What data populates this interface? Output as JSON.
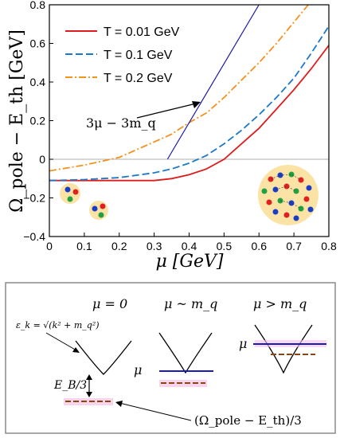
{
  "chart_data": {
    "type": "line",
    "xlabel": "μ [GeV]",
    "ylabel": "Ω_pole − E_th [GeV]",
    "xlim": [
      0,
      0.8
    ],
    "ylim": [
      -0.4,
      0.8
    ],
    "x_ticks": [
      "0",
      "0.1",
      "0.2",
      "0.3",
      "0.4",
      "0.5",
      "0.6",
      "0.7",
      "0.8"
    ],
    "y_ticks": [
      "−0.4",
      "−0.2",
      "0",
      "0.2",
      "0.4",
      "0.6",
      "0.8"
    ],
    "legend": {
      "placement": "top-left",
      "entries": [
        {
          "label": "T = 0.01 GeV",
          "color": "#e01b1b",
          "style": "solid"
        },
        {
          "label": "T = 0.1 GeV",
          "color": "#1e78c8",
          "style": "dashed"
        },
        {
          "label": "T = 0.2 GeV",
          "color": "#f5921e",
          "style": "dashdot"
        }
      ]
    },
    "series": [
      {
        "name": "T = 0.01 GeV",
        "color": "#e01b1b",
        "style": "solid",
        "x": [
          0,
          0.1,
          0.2,
          0.3,
          0.35,
          0.4,
          0.45,
          0.5,
          0.55,
          0.6,
          0.65,
          0.7,
          0.75,
          0.8
        ],
        "y": [
          -0.11,
          -0.11,
          -0.11,
          -0.11,
          -0.1,
          -0.08,
          -0.05,
          0.0,
          0.08,
          0.16,
          0.26,
          0.36,
          0.47,
          0.59
        ]
      },
      {
        "name": "T = 0.1 GeV",
        "color": "#1e78c8",
        "style": "dashed",
        "x": [
          0,
          0.1,
          0.2,
          0.3,
          0.35,
          0.4,
          0.45,
          0.5,
          0.55,
          0.6,
          0.65,
          0.7,
          0.75,
          0.8
        ],
        "y": [
          -0.11,
          -0.105,
          -0.095,
          -0.07,
          -0.05,
          -0.02,
          0.02,
          0.08,
          0.15,
          0.23,
          0.32,
          0.42,
          0.55,
          0.69
        ]
      },
      {
        "name": "T = 0.2 GeV",
        "color": "#f5921e",
        "style": "dashdot",
        "x": [
          0,
          0.1,
          0.2,
          0.3,
          0.35,
          0.4,
          0.45,
          0.5,
          0.55,
          0.6,
          0.65,
          0.7,
          0.75,
          0.8
        ],
        "y": [
          -0.06,
          -0.03,
          0.01,
          0.09,
          0.13,
          0.19,
          0.24,
          0.32,
          0.41,
          0.5,
          0.6,
          0.71,
          0.82,
          0.94
        ]
      },
      {
        "name": "3μ − 3m_q",
        "color": "#1a1aa6",
        "style": "solid",
        "x": [
          0.338,
          0.6
        ],
        "y": [
          0,
          0.8
        ]
      }
    ],
    "annotations": [
      {
        "text": "3μ − 3m_q"
      }
    ]
  },
  "inset": {
    "panel1_title": "μ = 0",
    "panel2_title": "μ ~ m_q",
    "panel3_title": "μ > m_q",
    "dispersion_label": "ε_k = √(k² + m_q²)",
    "binding_label": "E_B/3",
    "pole_label": "(Ω_pole − E_th)/3",
    "mu_label": "μ",
    "colors": {
      "dispersion": "#000000",
      "fermi_level": "#1a1ab4",
      "bound_state": "#8b4513",
      "highlight": "#f5c2e6"
    }
  }
}
